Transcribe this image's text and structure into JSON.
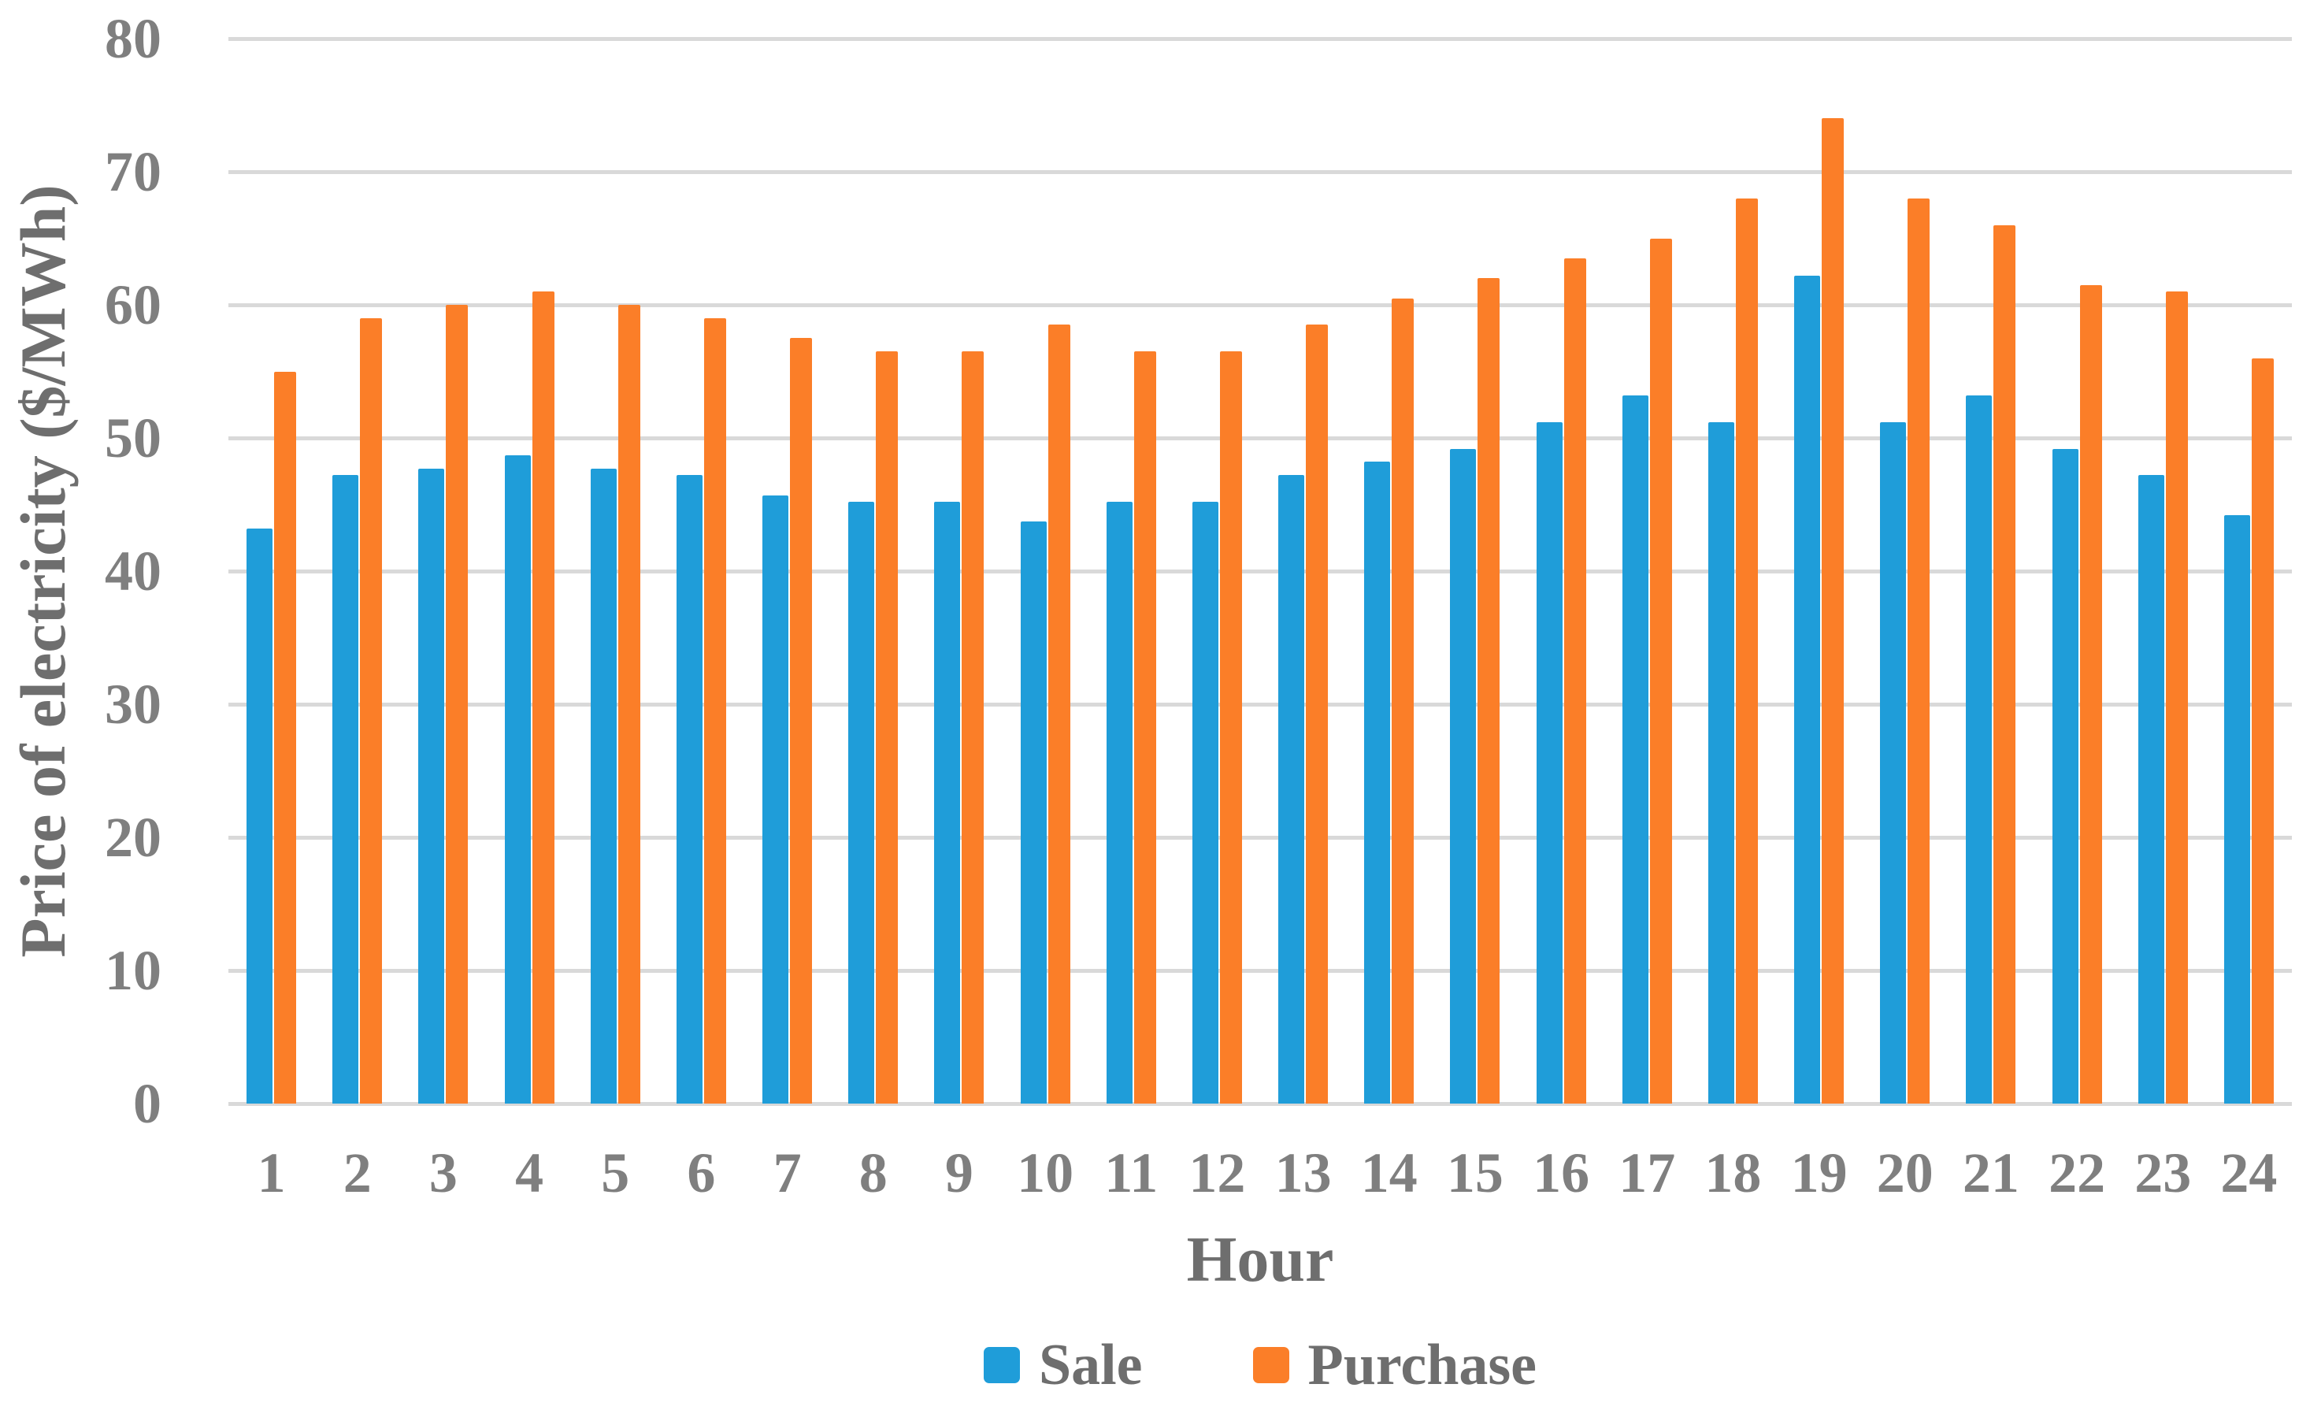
{
  "chart_data": {
    "type": "bar",
    "title": "",
    "xlabel": "Hour",
    "ylabel": "Price of electricity ($/MWh)",
    "categories": [
      "1",
      "2",
      "3",
      "4",
      "5",
      "6",
      "7",
      "8",
      "9",
      "10",
      "11",
      "12",
      "13",
      "14",
      "15",
      "16",
      "17",
      "18",
      "19",
      "20",
      "21",
      "22",
      "23",
      "24"
    ],
    "series": [
      {
        "name": "Sale",
        "color": "#1F9DD9",
        "values": [
          43.2,
          47.2,
          47.7,
          48.7,
          47.7,
          47.2,
          45.7,
          45.2,
          45.2,
          43.7,
          45.2,
          45.2,
          47.2,
          48.2,
          49.2,
          51.2,
          53.2,
          51.2,
          62.2,
          51.2,
          53.2,
          49.2,
          47.2,
          44.2
        ]
      },
      {
        "name": "Purchase",
        "color": "#FB7E28",
        "values": [
          55,
          59,
          60,
          61,
          60,
          59,
          57.5,
          56.5,
          56.5,
          58.5,
          56.5,
          56.5,
          58.5,
          60.5,
          62,
          63.5,
          65,
          68,
          74,
          68,
          66,
          61.5,
          61,
          56
        ]
      }
    ],
    "ylim": [
      0,
      80
    ],
    "ytick_step": 10,
    "yticks": [
      "0",
      "10",
      "20",
      "30",
      "40",
      "50",
      "60",
      "70",
      "80"
    ],
    "grid": true,
    "legend_position": "bottom"
  },
  "colors": {
    "background": "#FFFFFF",
    "gridline": "#D9D9D9",
    "tick_text": "#7F7F7F",
    "axis_title_text": "#6E6E6E",
    "legend_text": "#6E6E6E"
  }
}
